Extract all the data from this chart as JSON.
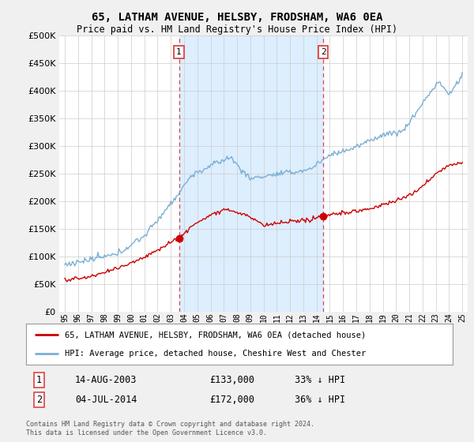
{
  "title": "65, LATHAM AVENUE, HELSBY, FRODSHAM, WA6 0EA",
  "subtitle": "Price paid vs. HM Land Registry's House Price Index (HPI)",
  "ylim": [
    0,
    500000
  ],
  "yticks": [
    0,
    50000,
    100000,
    150000,
    200000,
    250000,
    300000,
    350000,
    400000,
    450000,
    500000
  ],
  "sale1_date_num": 2003.617,
  "sale1_price": 133000,
  "sale2_date_num": 2014.503,
  "sale2_price": 172000,
  "legend_line1": "65, LATHAM AVENUE, HELSBY, FRODSHAM, WA6 0EA (detached house)",
  "legend_line2": "HPI: Average price, detached house, Cheshire West and Chester",
  "table_row1": [
    "1",
    "14-AUG-2003",
    "£133,000",
    "33% ↓ HPI"
  ],
  "table_row2": [
    "2",
    "04-JUL-2014",
    "£172,000",
    "36% ↓ HPI"
  ],
  "footer1": "Contains HM Land Registry data © Crown copyright and database right 2024.",
  "footer2": "This data is licensed under the Open Government Licence v3.0.",
  "hpi_color": "#7bafd4",
  "hpi_fill_color": "#ddeeff",
  "sale_color": "#cc0000",
  "vline_color": "#dd4444",
  "background_color": "#f0f0f0",
  "plot_bg_color": "#ffffff",
  "grid_color": "#cccccc"
}
